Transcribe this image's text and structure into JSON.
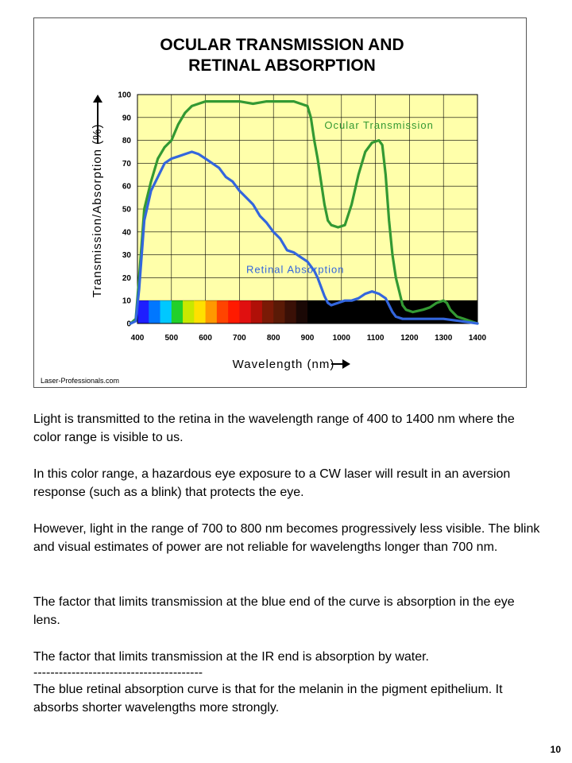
{
  "chart": {
    "watermark": "Laser-Professionals.com",
    "visible_spectrum_colors": [
      "#1e1eff",
      "#0077ff",
      "#00c8ff",
      "#22d02a",
      "#c8e800",
      "#ffe000",
      "#ff9800",
      "#ff4400",
      "#ff1a00",
      "#e01010",
      "#b01008",
      "#7a1a06",
      "#5a1a06",
      "#3a1006",
      "#1a0805"
    ]
  },
  "chart_data": {
    "type": "line",
    "title": "OCULAR TRANSMISSION AND RETINAL ABSORPTION",
    "title_lines": [
      "OCULAR TRANSMISSION AND",
      "RETINAL ABSORPTION"
    ],
    "xlabel": "Wavelength (nm)",
    "ylabel": "Transmission/Absorption (%)",
    "xlim": [
      400,
      1400
    ],
    "ylim": [
      0,
      100
    ],
    "x_ticks": [
      400,
      500,
      600,
      700,
      800,
      900,
      1000,
      1100,
      1200,
      1300,
      1400
    ],
    "y_ticks": [
      0,
      10,
      20,
      30,
      40,
      50,
      60,
      70,
      80,
      90,
      100
    ],
    "plot_background": "#ffffaa",
    "grid": true,
    "spectrum_band": {
      "x_start": 400,
      "x_end": 1400,
      "y_top": 10,
      "visible_end": 900
    },
    "series": [
      {
        "name": "Ocular Transmission",
        "color": "#339933",
        "label_anchor": [
          950,
          85
        ],
        "points": [
          [
            380,
            0
          ],
          [
            395,
            2
          ],
          [
            405,
            20
          ],
          [
            420,
            50
          ],
          [
            440,
            62
          ],
          [
            460,
            72
          ],
          [
            480,
            77
          ],
          [
            500,
            80
          ],
          [
            520,
            87
          ],
          [
            540,
            92
          ],
          [
            560,
            95
          ],
          [
            580,
            96
          ],
          [
            600,
            97
          ],
          [
            640,
            97
          ],
          [
            700,
            97
          ],
          [
            740,
            96
          ],
          [
            780,
            97
          ],
          [
            820,
            97
          ],
          [
            860,
            97
          ],
          [
            880,
            96
          ],
          [
            900,
            95
          ],
          [
            910,
            90
          ],
          [
            920,
            80
          ],
          [
            930,
            72
          ],
          [
            940,
            62
          ],
          [
            950,
            52
          ],
          [
            960,
            45
          ],
          [
            970,
            43
          ],
          [
            990,
            42
          ],
          [
            1010,
            43
          ],
          [
            1030,
            52
          ],
          [
            1050,
            65
          ],
          [
            1070,
            75
          ],
          [
            1090,
            79
          ],
          [
            1110,
            80
          ],
          [
            1120,
            78
          ],
          [
            1130,
            65
          ],
          [
            1140,
            45
          ],
          [
            1150,
            30
          ],
          [
            1160,
            20
          ],
          [
            1170,
            14
          ],
          [
            1180,
            8
          ],
          [
            1190,
            6
          ],
          [
            1210,
            5
          ],
          [
            1240,
            6
          ],
          [
            1260,
            7
          ],
          [
            1280,
            9
          ],
          [
            1300,
            10
          ],
          [
            1310,
            9
          ],
          [
            1320,
            6
          ],
          [
            1340,
            3
          ],
          [
            1360,
            2
          ],
          [
            1380,
            1
          ],
          [
            1400,
            0
          ]
        ]
      },
      {
        "name": "Retinal Absorption",
        "color": "#3366dd",
        "label_anchor": [
          720,
          22
        ],
        "points": [
          [
            380,
            0
          ],
          [
            395,
            1
          ],
          [
            405,
            15
          ],
          [
            420,
            45
          ],
          [
            440,
            58
          ],
          [
            460,
            64
          ],
          [
            480,
            70
          ],
          [
            500,
            72
          ],
          [
            520,
            73
          ],
          [
            540,
            74
          ],
          [
            560,
            75
          ],
          [
            580,
            74
          ],
          [
            600,
            72
          ],
          [
            620,
            70
          ],
          [
            640,
            68
          ],
          [
            660,
            64
          ],
          [
            680,
            62
          ],
          [
            700,
            58
          ],
          [
            720,
            55
          ],
          [
            740,
            52
          ],
          [
            760,
            47
          ],
          [
            780,
            44
          ],
          [
            800,
            40
          ],
          [
            820,
            37
          ],
          [
            840,
            32
          ],
          [
            860,
            31
          ],
          [
            880,
            29
          ],
          [
            900,
            27
          ],
          [
            920,
            23
          ],
          [
            930,
            20
          ],
          [
            940,
            16
          ],
          [
            950,
            12
          ],
          [
            960,
            9
          ],
          [
            970,
            8
          ],
          [
            990,
            9
          ],
          [
            1010,
            10
          ],
          [
            1030,
            10
          ],
          [
            1050,
            11
          ],
          [
            1070,
            13
          ],
          [
            1090,
            14
          ],
          [
            1110,
            13
          ],
          [
            1130,
            11
          ],
          [
            1140,
            8
          ],
          [
            1150,
            5
          ],
          [
            1160,
            3
          ],
          [
            1180,
            2
          ],
          [
            1250,
            2
          ],
          [
            1300,
            2
          ],
          [
            1350,
            1
          ],
          [
            1400,
            0
          ]
        ]
      }
    ]
  },
  "text": {
    "paragraphs": [
      "Light is transmitted to the retina in the wavelength range of 400 to 1400 nm where the color range is visible to us.",
      "In this color range, a hazardous eye exposure to a CW laser will result in an aversion response (such as a blink) that protects the eye.",
      "However, light in the range of 700  to 800 nm becomes progressively less visible. The blink and visual estimates of power are not reliable for wavelengths longer than 700 nm.",
      "The factor that limits transmission at the blue end of the curve is absorption in the eye lens.",
      "The factor that limits transmission at the IR end is absorption by water."
    ],
    "separator": "----------------------------------------",
    "final_paragraph": "The blue retinal absorption curve is that for the melanin in the pigment epithelium.  It absorbs shorter wavelengths more strongly."
  },
  "page_number": "10"
}
